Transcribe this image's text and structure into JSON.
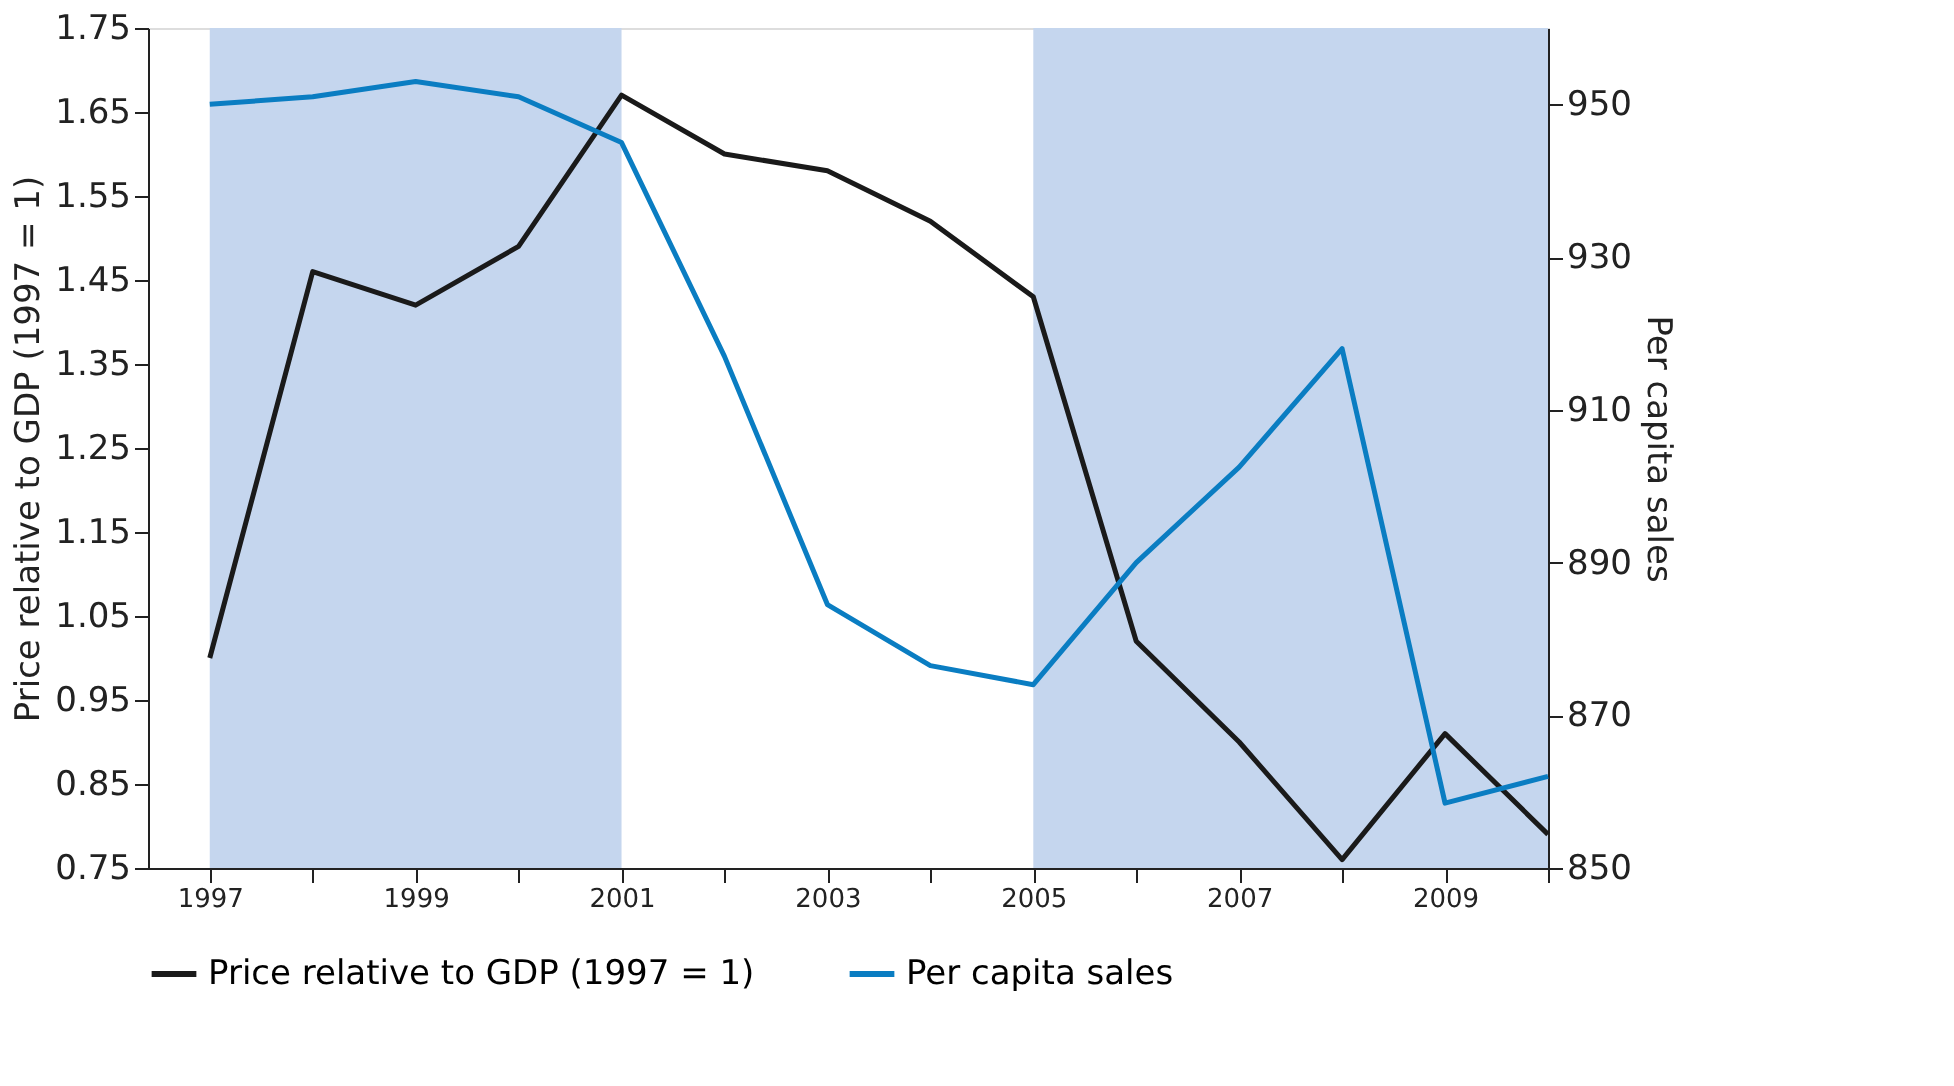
{
  "chart_data": {
    "type": "line",
    "xlabel": null,
    "ylabel": "Price relative to GDP (1997 = 1)",
    "y2label": "Per capita sales",
    "x": [
      1997,
      1998,
      1999,
      2000,
      2001,
      2002,
      2003,
      2004,
      2005,
      2006,
      2007,
      2008,
      2009,
      2010
    ],
    "series": [
      {
        "name": "Price relative to GDP (1997 = 1)",
        "color": "#1a1a1a",
        "values": [
          1.0,
          1.46,
          1.42,
          1.49,
          1.67,
          1.6,
          1.58,
          1.52,
          1.43,
          1.02,
          0.9,
          0.76,
          0.91,
          0.79
        ]
      },
      {
        "name": "Per capita sales",
        "color": "#0a7dc2",
        "axis": "y2",
        "values": [
          950,
          951,
          953,
          951,
          945,
          917,
          884.5,
          876.5,
          874,
          890,
          902.5,
          918,
          858.5,
          862
        ]
      }
    ],
    "xlim": [
      1996.4,
      2010
    ],
    "xticks": [
      1997,
      {
        "value": 1998,
        "label": null
      },
      1999,
      {
        "value": 2000,
        "label": null
      },
      2001,
      {
        "value": 2002,
        "label": null
      },
      2003,
      {
        "value": 2004,
        "label": null
      },
      2005,
      {
        "value": 2006,
        "label": null
      },
      2007,
      {
        "value": 2008,
        "label": null
      },
      2009,
      {
        "value": 2010,
        "label": null
      }
    ],
    "ylim": [
      0.75,
      1.75
    ],
    "yticks": [
      0.75,
      0.85,
      0.95,
      1.05,
      1.15,
      1.25,
      1.35,
      1.45,
      1.55,
      1.65,
      1.75
    ],
    "y2lim": [
      850,
      960
    ],
    "y2ticks": [
      850,
      870,
      890,
      910,
      930,
      950
    ],
    "bands": [
      {
        "axis": "x",
        "from": 1997,
        "to": 2001,
        "color": "#c5d6ee"
      },
      {
        "axis": "x",
        "from": 2005,
        "to": 2010,
        "color": "#c5d6ee"
      }
    ],
    "grid": false,
    "legend": "bottom"
  }
}
